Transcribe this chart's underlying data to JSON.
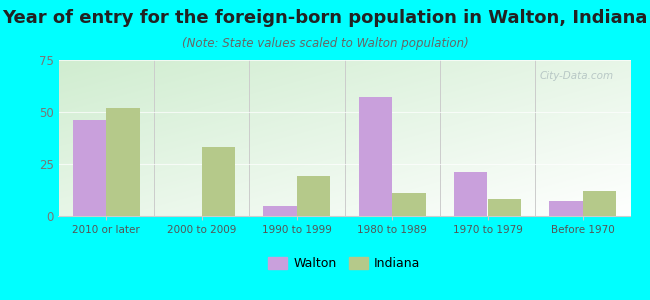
{
  "title": "Year of entry for the foreign-born population in Walton, Indiana",
  "subtitle": "(Note: State values scaled to Walton population)",
  "categories": [
    "2010 or later",
    "2000 to 2009",
    "1990 to 1999",
    "1980 to 1989",
    "1970 to 1979",
    "Before 1970"
  ],
  "walton_values": [
    46,
    0,
    5,
    57,
    21,
    7
  ],
  "indiana_values": [
    52,
    33,
    19,
    11,
    8,
    12
  ],
  "walton_color": "#c9a0dc",
  "indiana_color": "#b5c98a",
  "ylim": [
    0,
    75
  ],
  "yticks": [
    0,
    25,
    50,
    75
  ],
  "fig_bg_color": "#00ffff",
  "title_fontsize": 13,
  "subtitle_fontsize": 8.5,
  "bar_width": 0.35,
  "legend_labels": [
    "Walton",
    "Indiana"
  ]
}
